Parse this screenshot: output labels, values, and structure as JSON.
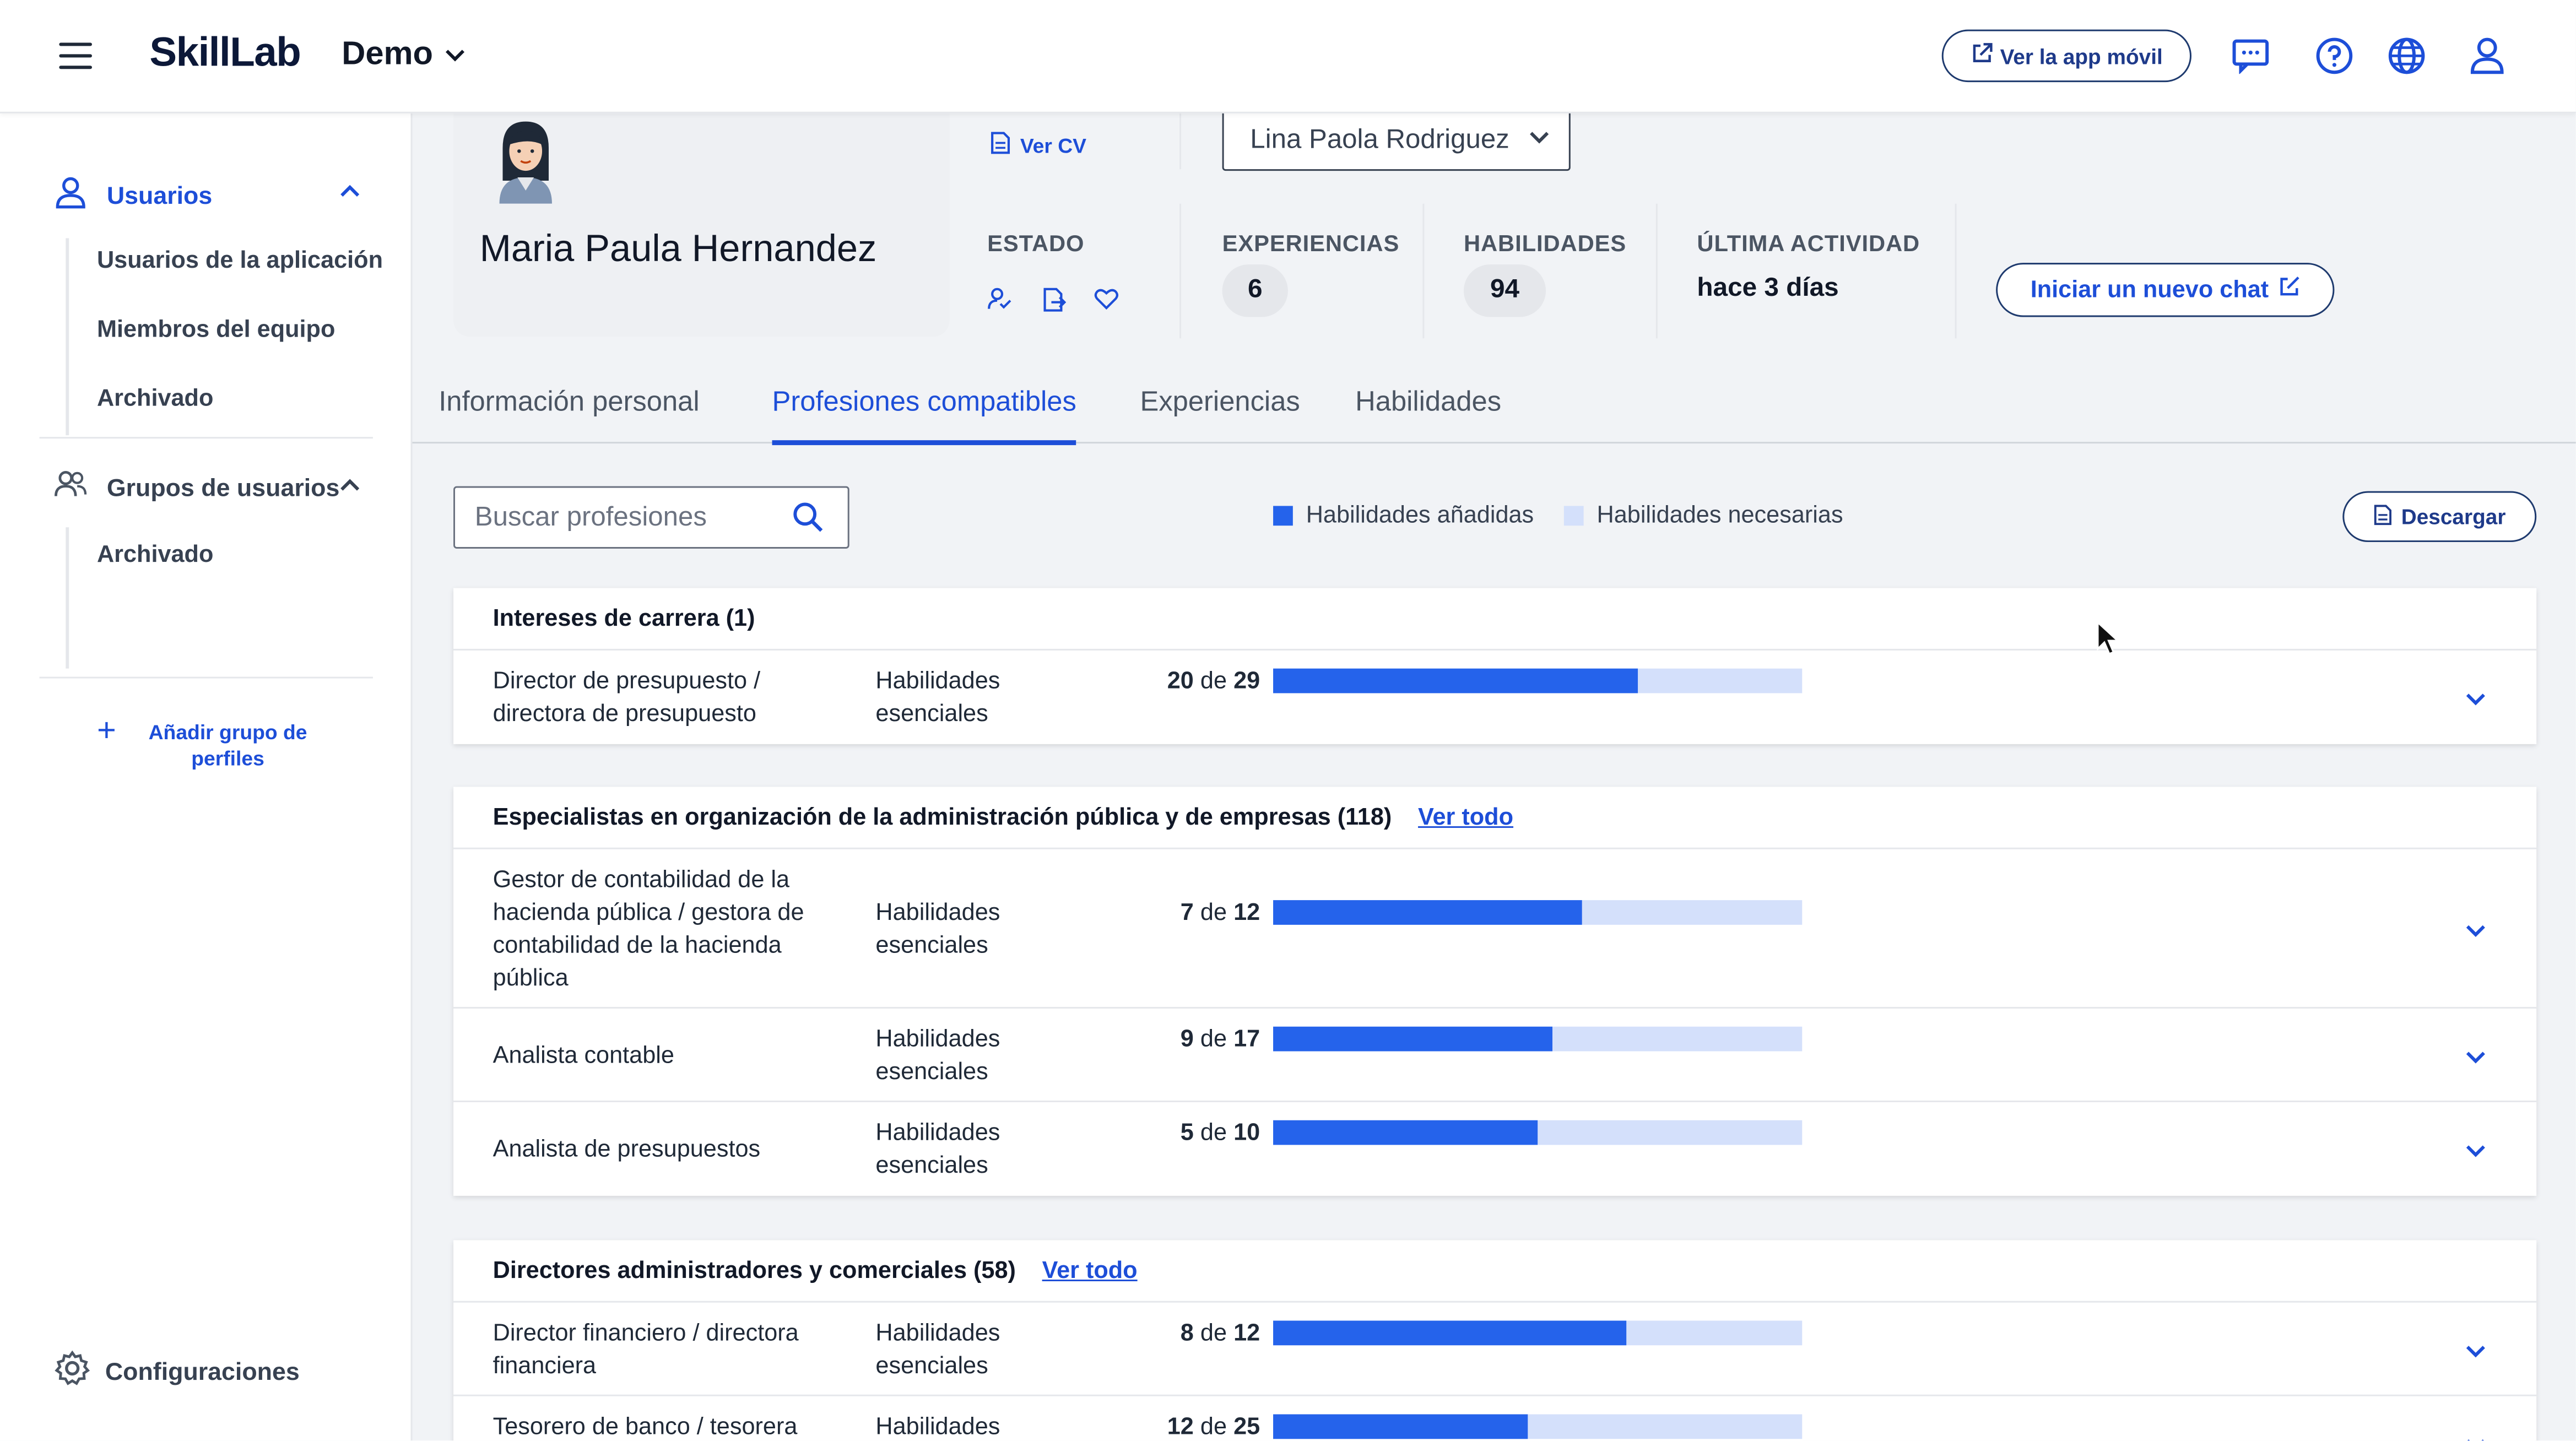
{
  "header": {
    "logo": "SkillLab",
    "org": "Demo",
    "mobile_app_label": "Ver la app móvil"
  },
  "sidebar": {
    "users_label": "Usuarios",
    "users_items": [
      "Usuarios de la aplicación",
      "Miembros del equipo",
      "Archivado"
    ],
    "groups_label": "Grupos de usuarios",
    "groups_items": [
      "Archivado"
    ],
    "add_group_label": "Añadir grupo de perfiles",
    "settings_label": "Configuraciones"
  },
  "profile": {
    "name": "Maria Paula Hernandez",
    "cv_link": "Ver CV",
    "status_label": "ESTADO",
    "assignee": "Lina Paola Rodriguez",
    "experiences_label": "EXPERIENCIAS",
    "experiences_value": "6",
    "skills_label": "HABILIDADES",
    "skills_value": "94",
    "last_activity_label": "ÚLTIMA ACTIVIDAD",
    "last_activity_value": "hace 3 días",
    "chat_button": "Iniciar un nuevo chat"
  },
  "tabs": [
    "Información personal",
    "Profesiones compatibles",
    "Experiencias",
    "Habilidades"
  ],
  "active_tab": 1,
  "toolbar": {
    "search_placeholder": "Buscar profesiones",
    "legend_added": "Habilidades añadidas",
    "legend_needed": "Habilidades necesarias",
    "download_label": "Descargar"
  },
  "colors": {
    "accent": "#1d4ed8",
    "bar_added": "#2563eb",
    "bar_needed": "#d4e0fb"
  },
  "groups": [
    {
      "title": "Intereses de carrera (1)",
      "see_all": "",
      "rows": [
        {
          "name": "Director de presupuesto / directora de presupuesto",
          "kind": "Habilidades esenciales",
          "have": "20",
          "sep": "de",
          "total": "29",
          "ratio": 0.69
        }
      ]
    },
    {
      "title": "Especialistas en organización de la administración pública y de empresas (118)",
      "see_all": "Ver todo",
      "rows": [
        {
          "name": "Gestor de contabilidad de la hacienda pública / gestora de contabilidad de la hacienda pública",
          "kind": "Habilidades esenciales",
          "have": "7",
          "sep": "de",
          "total": "12",
          "ratio": 0.583
        },
        {
          "name": "Analista contable",
          "kind": "Habilidades esenciales",
          "have": "9",
          "sep": "de",
          "total": "17",
          "ratio": 0.529
        },
        {
          "name": "Analista de presupuestos",
          "kind": "Habilidades esenciales",
          "have": "5",
          "sep": "de",
          "total": "10",
          "ratio": 0.5
        }
      ]
    },
    {
      "title": "Directores administradores y comerciales (58)",
      "see_all": "Ver todo",
      "rows": [
        {
          "name": "Director financiero / directora financiera",
          "kind": "Habilidades esenciales",
          "have": "8",
          "sep": "de",
          "total": "12",
          "ratio": 0.667
        },
        {
          "name": "Tesorero de banco / tesorera",
          "kind": "Habilidades",
          "have": "12",
          "sep": "de",
          "total": "25",
          "ratio": 0.48
        }
      ]
    }
  ]
}
